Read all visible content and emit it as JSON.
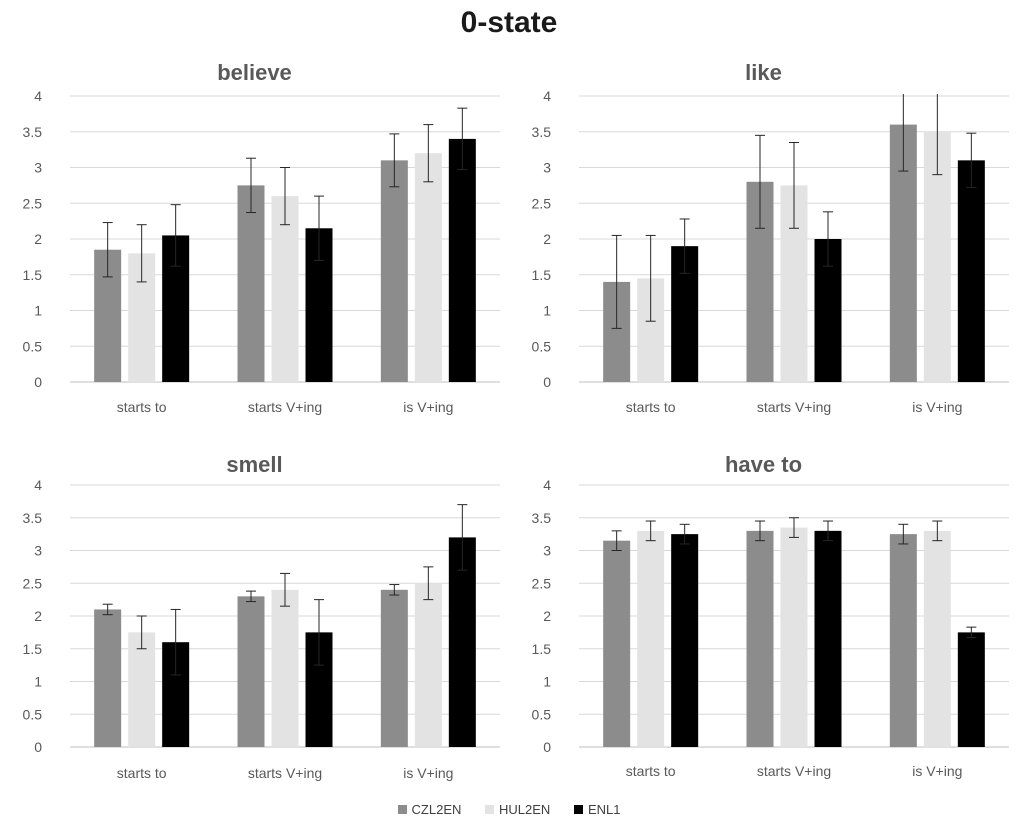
{
  "title": "0-state",
  "colors": {
    "CZL2EN": "#8c8c8c",
    "HUL2EN": "#e3e3e3",
    "ENL1": "#000000"
  },
  "legend": [
    {
      "name": "CZL2EN",
      "color": "#8c8c8c"
    },
    {
      "name": "HUL2EN",
      "color": "#e3e3e3"
    },
    {
      "name": "ENL1",
      "color": "#000000"
    }
  ],
  "chart_data": [
    {
      "type": "bar",
      "title": "believe",
      "categories": [
        "starts to",
        "starts V+ing",
        "is V+ing"
      ],
      "ylim": [
        0,
        4
      ],
      "yticks": [
        "0",
        "0.5",
        "1",
        "1.5",
        "2",
        "2.5",
        "3",
        "3.5",
        "4"
      ],
      "grid": true,
      "series": [
        {
          "name": "CZL2EN",
          "values": [
            1.85,
            2.75,
            3.1
          ],
          "error": [
            0.38,
            0.38,
            0.37
          ]
        },
        {
          "name": "HUL2EN",
          "values": [
            1.8,
            2.6,
            3.2
          ],
          "error": [
            0.4,
            0.4,
            0.4
          ]
        },
        {
          "name": "ENL1",
          "values": [
            2.05,
            2.15,
            3.4
          ],
          "error": [
            0.43,
            0.45,
            0.43
          ]
        }
      ]
    },
    {
      "type": "bar",
      "title": "like",
      "categories": [
        "starts to",
        "starts V+ing",
        "is V+ing"
      ],
      "ylim": [
        0,
        4
      ],
      "yticks": [
        "0",
        "0.5",
        "1",
        "1.5",
        "2",
        "2.5",
        "3",
        "3.5",
        "4"
      ],
      "grid": true,
      "series": [
        {
          "name": "CZL2EN",
          "values": [
            1.4,
            2.8,
            3.6
          ],
          "error": [
            0.65,
            0.65,
            0.65
          ]
        },
        {
          "name": "HUL2EN",
          "values": [
            1.45,
            2.75,
            3.5
          ],
          "error": [
            0.6,
            0.6,
            0.6
          ]
        },
        {
          "name": "ENL1",
          "values": [
            1.9,
            2.0,
            3.1
          ],
          "error": [
            0.38,
            0.38,
            0.38
          ]
        }
      ]
    },
    {
      "type": "bar",
      "title": "smell",
      "categories": [
        "starts to",
        "starts V+ing",
        "is V+ing"
      ],
      "ylim": [
        0,
        4
      ],
      "yticks": [
        "0",
        "0.5",
        "1",
        "1.5",
        "2",
        "2.5",
        "3",
        "3.5",
        "4"
      ],
      "grid": true,
      "series": [
        {
          "name": "CZL2EN",
          "values": [
            2.1,
            2.3,
            2.4
          ],
          "error": [
            0.08,
            0.08,
            0.08
          ]
        },
        {
          "name": "HUL2EN",
          "values": [
            1.75,
            2.4,
            2.5
          ],
          "error": [
            0.25,
            0.25,
            0.25
          ]
        },
        {
          "name": "ENL1",
          "values": [
            1.6,
            1.75,
            3.2
          ],
          "error": [
            0.5,
            0.5,
            0.5
          ]
        }
      ]
    },
    {
      "type": "bar",
      "title": "have to",
      "categories": [
        "starts to",
        "starts V+ing",
        "is V+ing"
      ],
      "ylim": [
        0,
        4
      ],
      "yticks": [
        "0",
        "0.5",
        "1",
        "1.5",
        "2",
        "2.5",
        "3",
        "3.5",
        "4"
      ],
      "grid": true,
      "series": [
        {
          "name": "CZL2EN",
          "values": [
            3.15,
            3.3,
            3.25
          ],
          "error": [
            0.15,
            0.15,
            0.15
          ]
        },
        {
          "name": "HUL2EN",
          "values": [
            3.3,
            3.35,
            3.3
          ],
          "error": [
            0.15,
            0.15,
            0.15
          ]
        },
        {
          "name": "ENL1",
          "values": [
            3.25,
            3.3,
            1.75
          ],
          "error": [
            0.15,
            0.15,
            0.08
          ]
        }
      ]
    }
  ]
}
